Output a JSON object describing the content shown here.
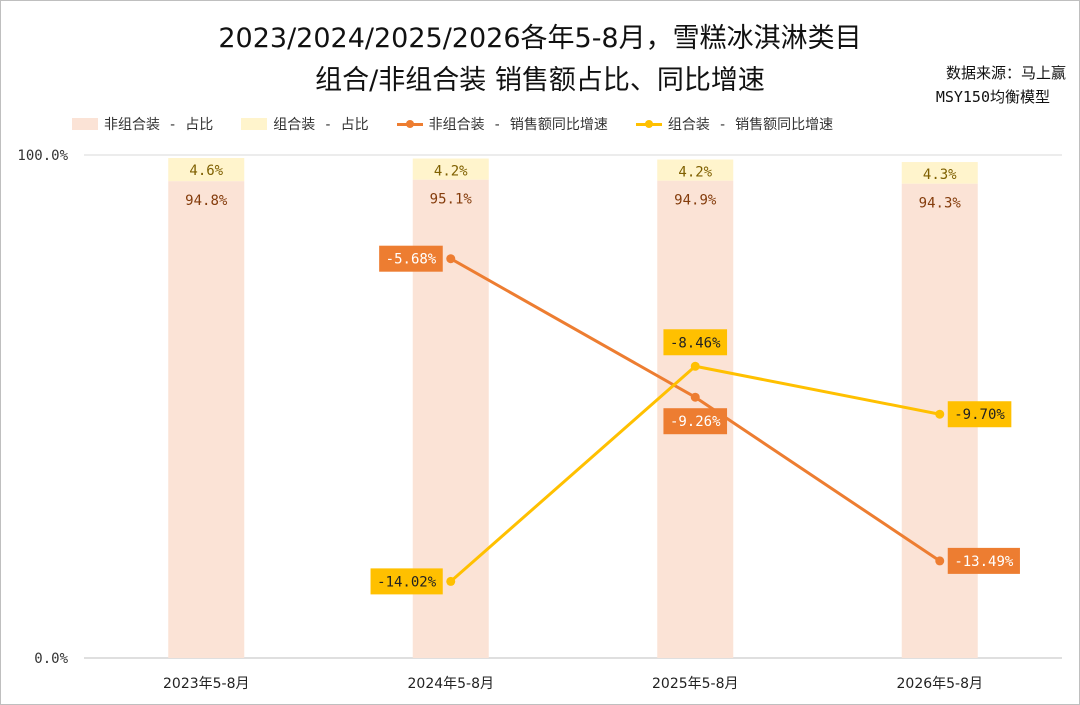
{
  "title": {
    "line1": "2023/2024/2025/2026各年5-8月，雪糕冰淇淋类目",
    "line2": "组合/非组合装 销售额占比、同比增速"
  },
  "source": {
    "line1": "数据来源：马上赢",
    "line2": "MSY150均衡模型"
  },
  "colors": {
    "bar_nonbundle": "#fbe3d6",
    "bar_bundle": "#fff4cc",
    "line_nonbundle": "#ed7d31",
    "line_bundle": "#ffc000",
    "bar_label": "#843c0c",
    "bundle_label": "#7f6000"
  },
  "chart_data": {
    "type": "bar+line",
    "categories": [
      "2023年5-8月",
      "2024年5-8月",
      "2025年5-8月",
      "2026年5-8月"
    ],
    "y_axis": {
      "ticks": [
        "0.0%",
        "100.0%"
      ],
      "range": [
        0,
        100
      ]
    },
    "legend": {
      "position": "top",
      "items": [
        "非组合装 - 占比",
        "组合装 - 占比",
        "非组合装 - 销售额同比增速",
        "组合装 - 销售额同比增速"
      ]
    },
    "bars": [
      {
        "name": "非组合装 - 占比",
        "values": [
          94.8,
          95.1,
          94.9,
          94.3
        ],
        "labels": [
          "94.8%",
          "95.1%",
          "94.9%",
          "94.3%"
        ]
      },
      {
        "name": "组合装 - 占比",
        "values": [
          4.6,
          4.2,
          4.2,
          4.3
        ],
        "labels": [
          "4.6%",
          "4.2%",
          "4.2%",
          "4.3%"
        ]
      }
    ],
    "lines": [
      {
        "name": "非组合装 - 销售额同比增速",
        "values": [
          null,
          -5.68,
          -9.26,
          -13.49
        ],
        "labels": [
          "",
          "-5.68%",
          "-9.26%",
          "-13.49%"
        ]
      },
      {
        "name": "组合装 - 销售额同比增速",
        "values": [
          null,
          -14.02,
          -8.46,
          -9.7
        ],
        "labels": [
          "",
          "-14.02%",
          "-8.46%",
          "-9.70%"
        ]
      }
    ],
    "secondary_axis_range": [
      -16,
      -3
    ]
  }
}
